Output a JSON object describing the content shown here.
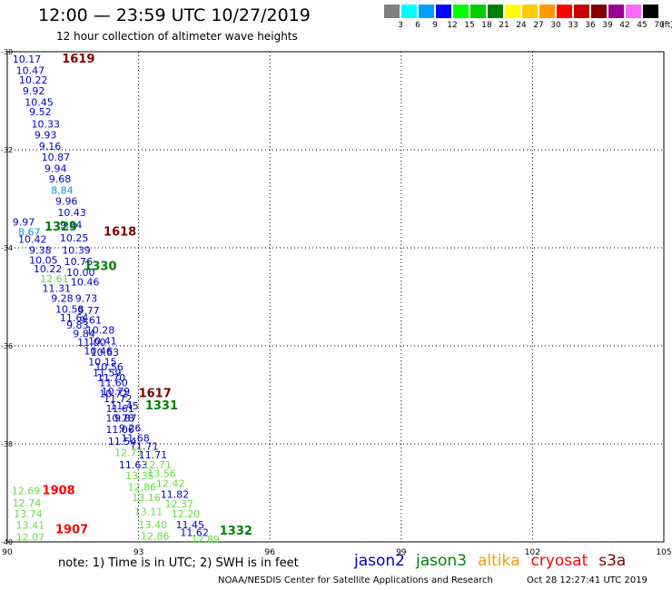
{
  "header": {
    "title": "12:00 — 23:59 UTC 10/27/2019",
    "subtitle": "12 hour collection of altimeter wave heights"
  },
  "color_scale": {
    "unit": "(ft)",
    "bins": [
      {
        "label": "3",
        "color": "#7f7f7f"
      },
      {
        "label": "6",
        "color": "#00ffff"
      },
      {
        "label": "9",
        "color": "#00a0ff"
      },
      {
        "label": "12",
        "color": "#0000ff"
      },
      {
        "label": "15",
        "color": "#00ff00"
      },
      {
        "label": "18",
        "color": "#00cc00"
      },
      {
        "label": "21",
        "color": "#008000"
      },
      {
        "label": "24",
        "color": "#ffff00"
      },
      {
        "label": "27",
        "color": "#ffcc00"
      },
      {
        "label": "30",
        "color": "#ff9900"
      },
      {
        "label": "33",
        "color": "#ff0000"
      },
      {
        "label": "36",
        "color": "#cc0000"
      },
      {
        "label": "39",
        "color": "#800000"
      },
      {
        "label": "42",
        "color": "#990099"
      },
      {
        "label": "45",
        "color": "#ff66ff"
      },
      {
        "label": "70",
        "color": "#000000"
      }
    ]
  },
  "map_extent": {
    "lon_min": 90,
    "lon_max": 105,
    "lat_min": -40,
    "lat_max": -30
  },
  "axes": {
    "x_ticks": [
      "90",
      "93",
      "96",
      "99",
      "102",
      "105"
    ],
    "y_ticks": [
      "-30",
      "-32",
      "-34",
      "-36",
      "-38",
      "-40"
    ]
  },
  "colors": {
    "jason2": "#0000cc",
    "jason3": "#008000",
    "altika": "#ff9900",
    "cryosat": "#ff0000",
    "s3a": "#800000",
    "cyan": "#00a0e0",
    "green": "#66dd44"
  },
  "time_labels": [
    {
      "text": "1619",
      "lon": 91.25,
      "lat": -30.22,
      "sat": "s3a"
    },
    {
      "text": "1329",
      "lon": 90.85,
      "lat": -33.65,
      "sat": "jason3"
    },
    {
      "text": "1618",
      "lon": 92.2,
      "lat": -33.75,
      "sat": "s3a"
    },
    {
      "text": "1330",
      "lon": 91.75,
      "lat": -34.45,
      "sat": "jason3"
    },
    {
      "text": "1617",
      "lon": 93.0,
      "lat": -37.05,
      "sat": "s3a"
    },
    {
      "text": "1331",
      "lon": 93.15,
      "lat": -37.3,
      "sat": "jason3"
    },
    {
      "text": "1908",
      "lon": 90.8,
      "lat": -39.03,
      "sat": "cryosat"
    },
    {
      "text": "1907",
      "lon": 91.1,
      "lat": -39.82,
      "sat": "cryosat"
    },
    {
      "text": "1332",
      "lon": 94.85,
      "lat": -39.85,
      "sat": "jason3"
    }
  ],
  "wave_labels": [
    {
      "text": "10.17",
      "lon": 90.12,
      "lat": -30.22,
      "color": "jason2"
    },
    {
      "text": "10.47",
      "lon": 90.2,
      "lat": -30.45,
      "color": "jason2"
    },
    {
      "text": "10.22",
      "lon": 90.27,
      "lat": -30.65,
      "color": "jason2"
    },
    {
      "text": "9.92",
      "lon": 90.35,
      "lat": -30.87,
      "color": "jason2"
    },
    {
      "text": "10.45",
      "lon": 90.4,
      "lat": -31.1,
      "color": "jason2"
    },
    {
      "text": "9.52",
      "lon": 90.5,
      "lat": -31.3,
      "color": "jason2"
    },
    {
      "text": "10.33",
      "lon": 90.55,
      "lat": -31.55,
      "color": "jason2"
    },
    {
      "text": "9.93",
      "lon": 90.62,
      "lat": -31.77,
      "color": "jason2"
    },
    {
      "text": "9.16",
      "lon": 90.72,
      "lat": -32.0,
      "color": "jason2"
    },
    {
      "text": "10.87",
      "lon": 90.78,
      "lat": -32.22,
      "color": "jason2"
    },
    {
      "text": "9.94",
      "lon": 90.85,
      "lat": -32.45,
      "color": "jason2"
    },
    {
      "text": "9.68",
      "lon": 90.95,
      "lat": -32.67,
      "color": "jason2"
    },
    {
      "text": "8.84",
      "lon": 91.0,
      "lat": -32.9,
      "color": "cyan"
    },
    {
      "text": "9.96",
      "lon": 91.1,
      "lat": -33.12,
      "color": "jason2"
    },
    {
      "text": "10.43",
      "lon": 91.15,
      "lat": -33.35,
      "color": "jason2"
    },
    {
      "text": "9.97",
      "lon": 90.12,
      "lat": -33.55,
      "color": "jason2"
    },
    {
      "text": "9.84",
      "lon": 91.2,
      "lat": -33.6,
      "color": "jason2"
    },
    {
      "text": "8.67",
      "lon": 90.25,
      "lat": -33.75,
      "color": "cyan"
    },
    {
      "text": "10.25",
      "lon": 91.2,
      "lat": -33.87,
      "color": "jason2"
    },
    {
      "text": "10.42",
      "lon": 90.25,
      "lat": -33.9,
      "color": "jason2"
    },
    {
      "text": "9.38",
      "lon": 90.5,
      "lat": -34.12,
      "color": "jason2"
    },
    {
      "text": "10.39",
      "lon": 91.25,
      "lat": -34.12,
      "color": "jason2"
    },
    {
      "text": "10.05",
      "lon": 90.5,
      "lat": -34.32,
      "color": "jason2"
    },
    {
      "text": "10.76",
      "lon": 91.3,
      "lat": -34.35,
      "color": "jason2"
    },
    {
      "text": "10.22",
      "lon": 90.6,
      "lat": -34.5,
      "color": "jason2"
    },
    {
      "text": "10.00",
      "lon": 91.35,
      "lat": -34.57,
      "color": "jason2"
    },
    {
      "text": "12.61",
      "lon": 90.75,
      "lat": -34.7,
      "color": "green"
    },
    {
      "text": "10.46",
      "lon": 91.45,
      "lat": -34.77,
      "color": "jason2"
    },
    {
      "text": "11.31",
      "lon": 90.8,
      "lat": -34.9,
      "color": "jason2"
    },
    {
      "text": "9.28",
      "lon": 91.0,
      "lat": -35.1,
      "color": "jason2"
    },
    {
      "text": "9.73",
      "lon": 91.55,
      "lat": -35.1,
      "color": "jason2"
    },
    {
      "text": "10.58",
      "lon": 91.1,
      "lat": -35.32,
      "color": "jason2"
    },
    {
      "text": "9.77",
      "lon": 91.6,
      "lat": -35.35,
      "color": "jason2"
    },
    {
      "text": "11.64",
      "lon": 91.2,
      "lat": -35.5,
      "color": "jason2"
    },
    {
      "text": "9.61",
      "lon": 91.65,
      "lat": -35.55,
      "color": "jason2"
    },
    {
      "text": "9.83",
      "lon": 91.35,
      "lat": -35.65,
      "color": "jason2"
    },
    {
      "text": "10.28",
      "lon": 91.8,
      "lat": -35.75,
      "color": "jason2"
    },
    {
      "text": "9.84",
      "lon": 91.5,
      "lat": -35.82,
      "color": "jason2"
    },
    {
      "text": "10.41",
      "lon": 91.85,
      "lat": -35.97,
      "color": "jason2"
    },
    {
      "text": "11.00",
      "lon": 91.6,
      "lat": -36.0,
      "color": "jason2"
    },
    {
      "text": "10.63",
      "lon": 91.9,
      "lat": -36.2,
      "color": "jason2"
    },
    {
      "text": "10.46",
      "lon": 91.75,
      "lat": -36.18,
      "color": "jason2"
    },
    {
      "text": "10.15",
      "lon": 91.85,
      "lat": -36.4,
      "color": "jason2"
    },
    {
      "text": "10.56",
      "lon": 92.0,
      "lat": -36.5,
      "color": "jason2"
    },
    {
      "text": "11.59",
      "lon": 91.95,
      "lat": -36.62,
      "color": "jason2"
    },
    {
      "text": "11.70",
      "lon": 92.05,
      "lat": -36.72,
      "color": "jason2"
    },
    {
      "text": "11.60",
      "lon": 92.1,
      "lat": -36.82,
      "color": "jason2"
    },
    {
      "text": "10.72",
      "lon": 92.1,
      "lat": -37.05,
      "color": "jason2"
    },
    {
      "text": "10.79",
      "lon": 92.15,
      "lat": -37.0,
      "color": "jason2"
    },
    {
      "text": "11.72",
      "lon": 92.2,
      "lat": -37.15,
      "color": "jason2"
    },
    {
      "text": "11.61",
      "lon": 92.25,
      "lat": -37.35,
      "color": "jason2"
    },
    {
      "text": "11.45",
      "lon": 92.35,
      "lat": -37.3,
      "color": "jason2"
    },
    {
      "text": "10.78",
      "lon": 92.25,
      "lat": -37.55,
      "color": "jason2"
    },
    {
      "text": "9.87",
      "lon": 92.45,
      "lat": -37.55,
      "color": "jason2"
    },
    {
      "text": "11.06",
      "lon": 92.25,
      "lat": -37.78,
      "color": "jason2"
    },
    {
      "text": "9.26",
      "lon": 92.55,
      "lat": -37.75,
      "color": "jason2"
    },
    {
      "text": "11.54",
      "lon": 92.3,
      "lat": -38.02,
      "color": "jason2"
    },
    {
      "text": "11.68",
      "lon": 92.6,
      "lat": -37.95,
      "color": "jason2"
    },
    {
      "text": "11.71",
      "lon": 92.8,
      "lat": -38.12,
      "color": "jason2"
    },
    {
      "text": "12.71",
      "lon": 92.45,
      "lat": -38.25,
      "color": "green"
    },
    {
      "text": "11.71",
      "lon": 93.0,
      "lat": -38.3,
      "color": "jason2"
    },
    {
      "text": "11.63",
      "lon": 92.55,
      "lat": -38.5,
      "color": "jason2"
    },
    {
      "text": "12.71",
      "lon": 93.1,
      "lat": -38.5,
      "color": "green"
    },
    {
      "text": "13.35",
      "lon": 92.7,
      "lat": -38.72,
      "color": "green"
    },
    {
      "text": "13.56",
      "lon": 93.2,
      "lat": -38.68,
      "color": "green"
    },
    {
      "text": "12.86",
      "lon": 92.75,
      "lat": -38.95,
      "color": "green"
    },
    {
      "text": "12.42",
      "lon": 93.4,
      "lat": -38.88,
      "color": "green"
    },
    {
      "text": "11.82",
      "lon": 93.5,
      "lat": -39.1,
      "color": "jason2"
    },
    {
      "text": "13.16",
      "lon": 92.85,
      "lat": -39.17,
      "color": "green"
    },
    {
      "text": "12.37",
      "lon": 93.6,
      "lat": -39.3,
      "color": "green"
    },
    {
      "text": "13.11",
      "lon": 92.9,
      "lat": -39.45,
      "color": "green"
    },
    {
      "text": "12.20",
      "lon": 93.75,
      "lat": -39.5,
      "color": "green"
    },
    {
      "text": "11.45",
      "lon": 93.85,
      "lat": -39.72,
      "color": "jason2"
    },
    {
      "text": "13.40",
      "lon": 93.0,
      "lat": -39.72,
      "color": "green"
    },
    {
      "text": "11.62",
      "lon": 93.95,
      "lat": -39.88,
      "color": "jason2"
    },
    {
      "text": "12.86",
      "lon": 93.05,
      "lat": -39.95,
      "color": "green"
    },
    {
      "text": "12.89",
      "lon": 94.2,
      "lat": -40.02,
      "color": "green"
    },
    {
      "text": "12.69",
      "lon": 90.1,
      "lat": -39.03,
      "color": "green"
    },
    {
      "text": "12.74",
      "lon": 90.12,
      "lat": -39.28,
      "color": "green"
    },
    {
      "text": "13.74",
      "lon": 90.15,
      "lat": -39.5,
      "color": "green"
    },
    {
      "text": "13.41",
      "lon": 90.2,
      "lat": -39.73,
      "color": "green"
    },
    {
      "text": "12.07",
      "lon": 90.2,
      "lat": -39.97,
      "color": "green"
    }
  ],
  "footer": {
    "note": "note:  1) Time is in UTC;  2) SWH is in feet",
    "satellites": [
      {
        "name": "jason2",
        "color": "#0000cc"
      },
      {
        "name": "jason3",
        "color": "#008000"
      },
      {
        "name": "altika",
        "color": "#ff9900"
      },
      {
        "name": "cryosat",
        "color": "#ff0000"
      },
      {
        "name": "s3a",
        "color": "#800000"
      }
    ],
    "credit": "NOAA/NESDIS Center for Satellite Applications and Research",
    "timestamp": "Oct 28 12:27:41 UTC 2019"
  }
}
